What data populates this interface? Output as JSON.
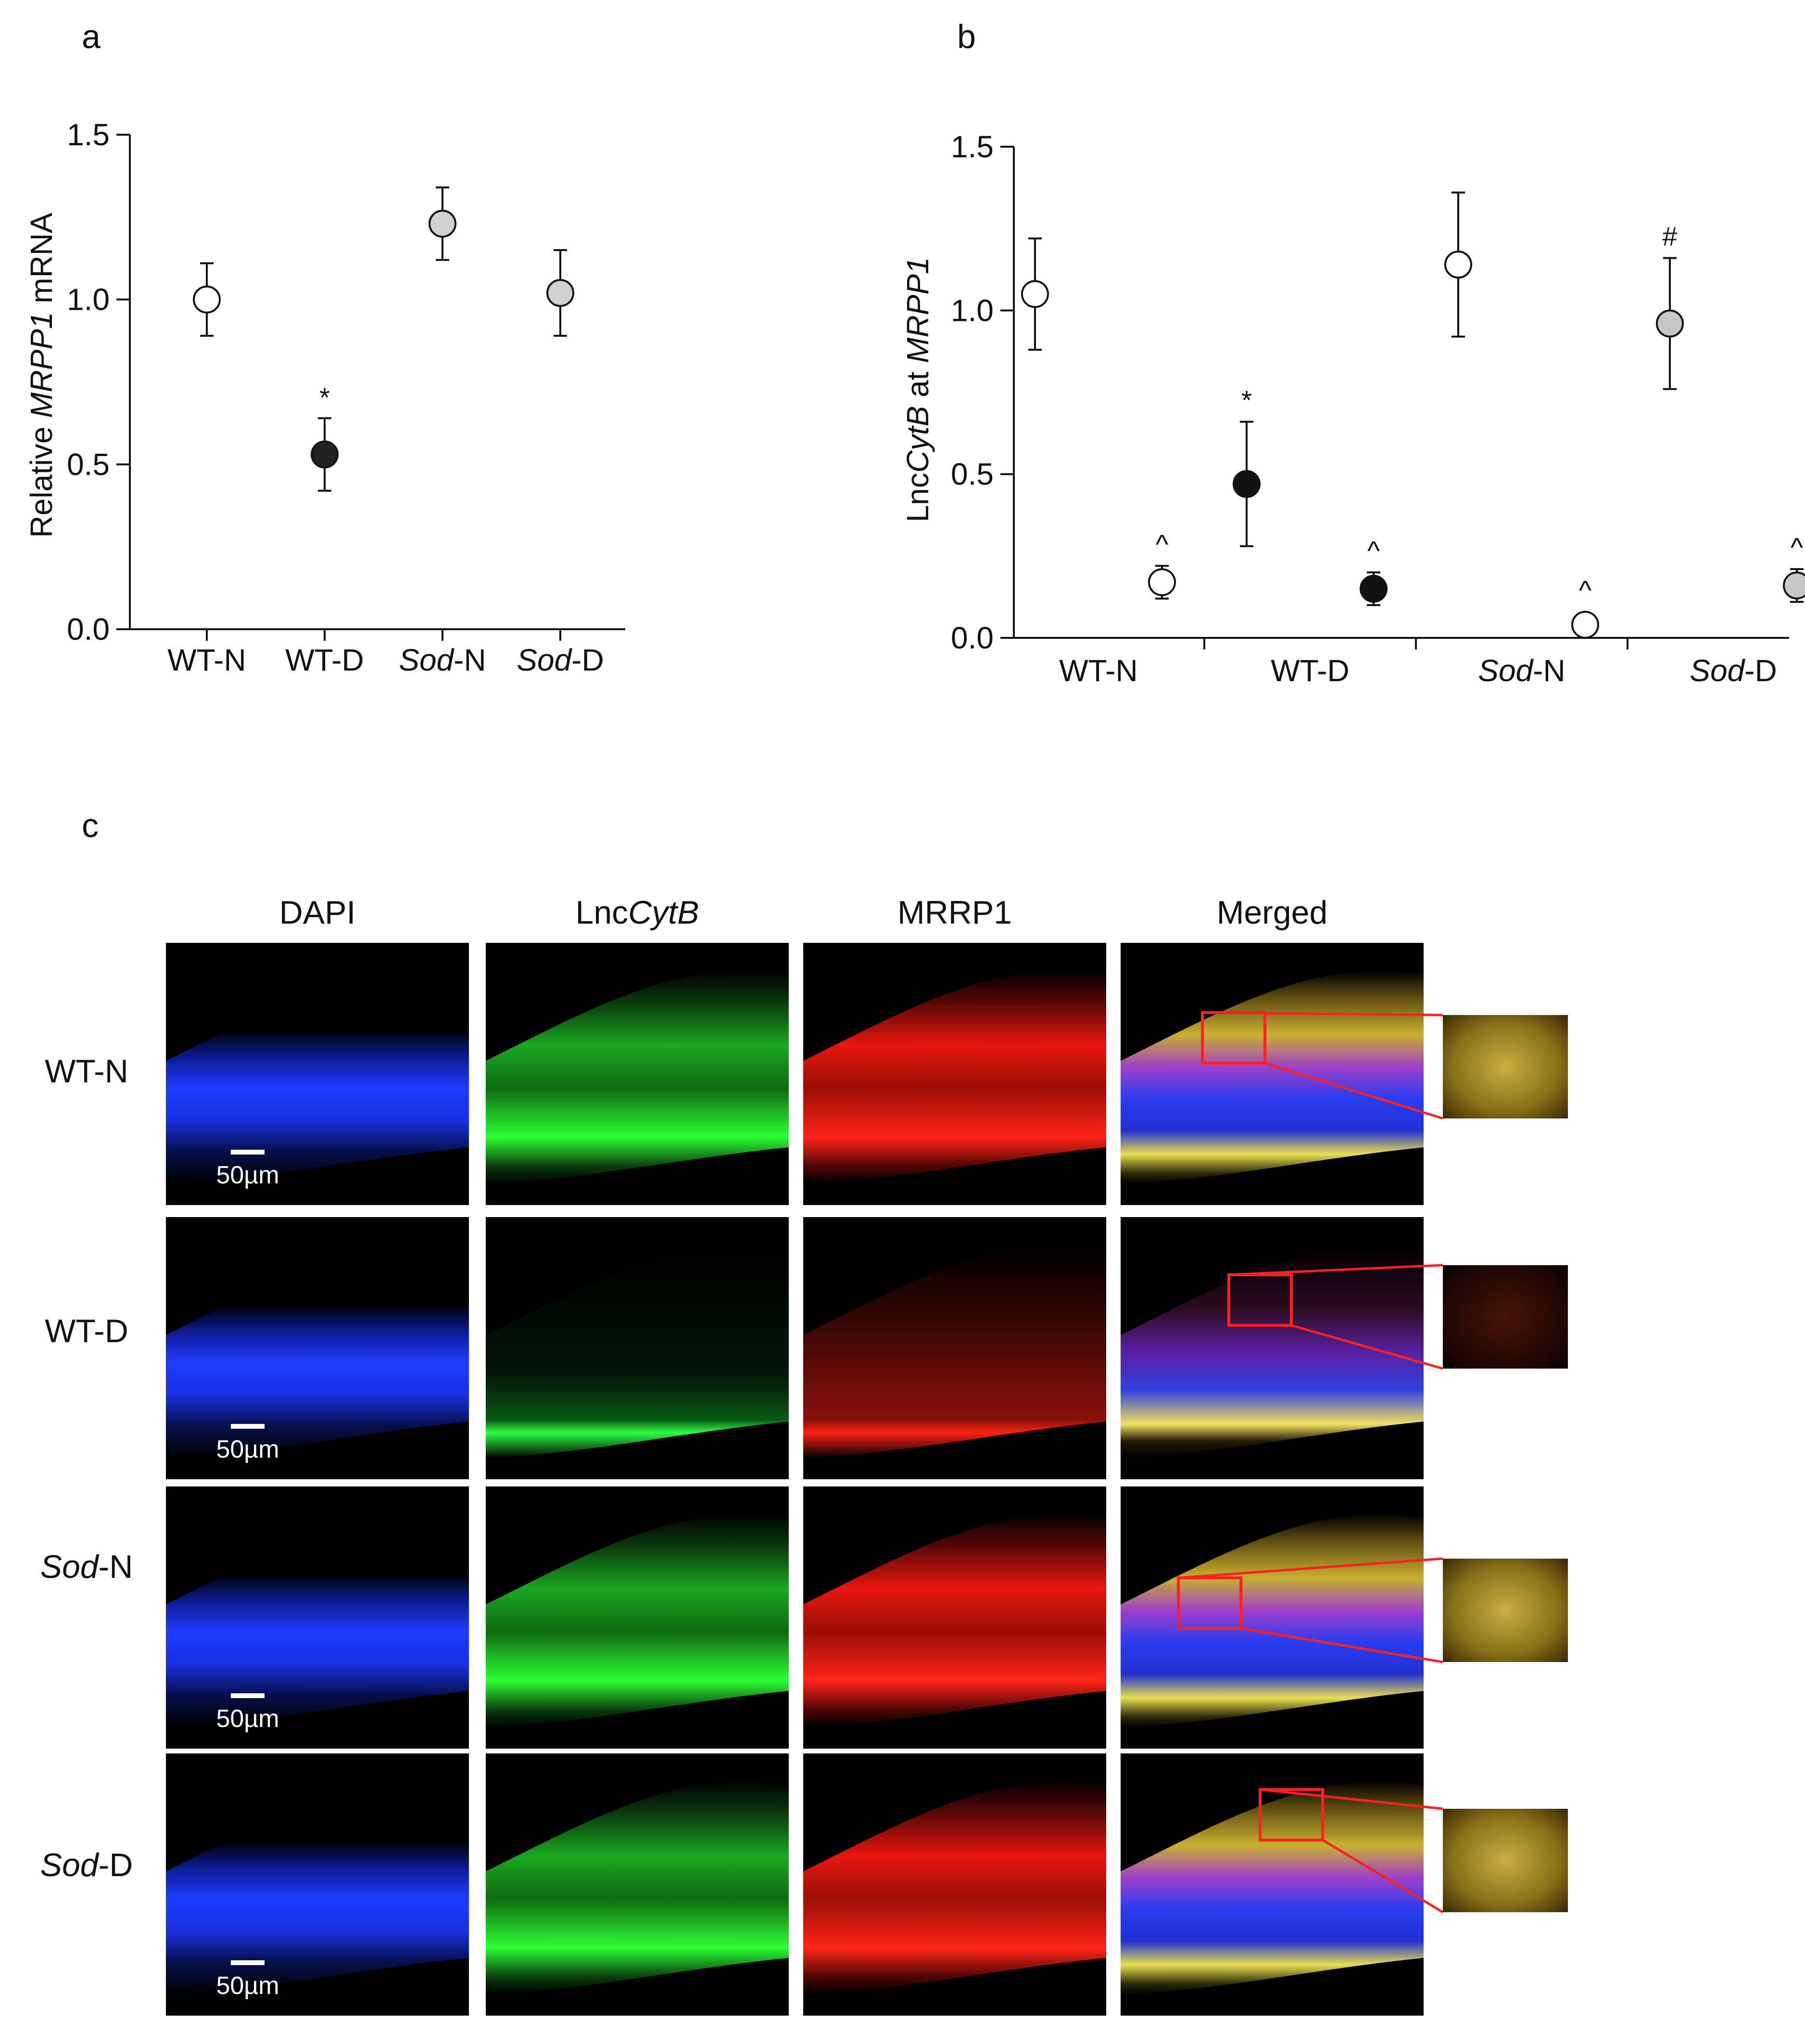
{
  "panel_labels": [
    "a",
    "b",
    "c"
  ],
  "chart_data": [
    {
      "panel": "a",
      "type": "scatter",
      "ylabel_parts": [
        "Relative ",
        "MRPP1",
        " mRNA"
      ],
      "ylim": [
        0,
        1.5
      ],
      "yticks": [
        "0.0",
        "0.5",
        "1.0",
        "1.5"
      ],
      "categories": [
        {
          "parts": [
            "WT-N"
          ]
        },
        {
          "parts": [
            "WT-D"
          ]
        },
        {
          "parts": [
            "Sod",
            "-N"
          ]
        },
        {
          "parts": [
            "Sod",
            "-D"
          ]
        }
      ],
      "points": [
        {
          "x": 1,
          "y": 1.0,
          "err": 0.11,
          "fill": "#ffffff",
          "label": ""
        },
        {
          "x": 2,
          "y": 0.53,
          "err": 0.11,
          "fill": "#222222",
          "label": "*"
        },
        {
          "x": 3,
          "y": 1.23,
          "err": 0.11,
          "fill": "#d0d0d0",
          "label": ""
        },
        {
          "x": 4,
          "y": 1.02,
          "err": 0.13,
          "fill": "#d0d0d0",
          "label": ""
        }
      ]
    },
    {
      "panel": "b",
      "type": "scatter",
      "ylabel_parts": [
        "Lnc",
        "CytB",
        " at ",
        "MRPP1"
      ],
      "ylim": [
        0,
        1.5
      ],
      "yticks": [
        "0.0",
        "0.5",
        "1.0",
        "1.5"
      ],
      "categories": [
        {
          "parts": [
            "WT-N"
          ]
        },
        {
          "parts": [
            "WT-D"
          ]
        },
        {
          "parts": [
            "Sod",
            "-N"
          ]
        },
        {
          "parts": [
            "Sod",
            "-D"
          ]
        }
      ],
      "points": [
        {
          "x": 0.7,
          "y": 1.05,
          "err": 0.17,
          "fill": "#ffffff",
          "label": ""
        },
        {
          "x": 1.3,
          "y": 0.17,
          "err": 0.05,
          "fill": "#ffffff",
          "label": "^"
        },
        {
          "x": 1.7,
          "y": 0.47,
          "err": 0.19,
          "fill": "#111111",
          "label": "*"
        },
        {
          "x": 2.3,
          "y": 0.15,
          "err": 0.05,
          "fill": "#111111",
          "label": "^"
        },
        {
          "x": 2.7,
          "y": 1.14,
          "err": 0.22,
          "fill": "#ffffff",
          "label": ""
        },
        {
          "x": 3.3,
          "y": 0.04,
          "err": 0.0,
          "fill": "#ffffff",
          "label": "^"
        },
        {
          "x": 3.7,
          "y": 0.96,
          "err": 0.2,
          "fill": "#c8c8c8",
          "label": "#"
        },
        {
          "x": 4.3,
          "y": 0.16,
          "err": 0.05,
          "fill": "#c8c8c8",
          "label": "^"
        }
      ]
    }
  ],
  "micrographs": {
    "columns": [
      {
        "parts": [
          "DAPI"
        ]
      },
      {
        "parts": [
          "Lnc",
          "CytB"
        ]
      },
      {
        "parts": [
          "MRRP1"
        ]
      },
      {
        "parts": [
          "Merged"
        ]
      }
    ],
    "rows": [
      {
        "parts": [
          "WT-N"
        ]
      },
      {
        "parts": [
          "WT-D"
        ]
      },
      {
        "parts": [
          "Sod",
          "-N"
        ]
      },
      {
        "parts": [
          "Sod",
          "-D"
        ]
      }
    ],
    "scale_bar": "50µm",
    "colors": {
      "dapi": "#1428ff",
      "lnc": "#22e02a",
      "mrrp": "#ff1a10",
      "highlight": "#ff2020"
    }
  }
}
